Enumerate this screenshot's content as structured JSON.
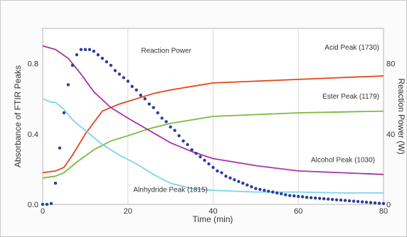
{
  "chart_data": {
    "type": "line",
    "xlabel": "Time (min)",
    "ylabel_left": "Absorbance of FTIR Peaks",
    "ylabel_right": "Reaction Power (W)",
    "xlim": [
      0,
      80
    ],
    "ylim_left": [
      0,
      1.0
    ],
    "ylim_right": [
      0,
      100
    ],
    "x_ticks": [
      0,
      20,
      40,
      60,
      80
    ],
    "y_ticks_left": [
      0.0,
      0.4,
      0.8
    ],
    "y_ticks_right": [
      0,
      40,
      80
    ],
    "grid": "vertical",
    "series": [
      {
        "name": "Acid Peak (1730)",
        "axis": "left",
        "color": "#e8421b",
        "style": "line",
        "x": [
          0,
          3,
          5,
          7,
          10,
          14,
          18,
          22,
          26,
          30,
          35,
          40,
          50,
          60,
          70,
          80
        ],
        "y": [
          0.18,
          0.19,
          0.21,
          0.28,
          0.4,
          0.53,
          0.57,
          0.6,
          0.63,
          0.65,
          0.67,
          0.69,
          0.7,
          0.71,
          0.72,
          0.73
        ]
      },
      {
        "name": "Ester Peak (1179)",
        "axis": "left",
        "color": "#77bb44",
        "style": "line",
        "x": [
          0,
          3,
          5,
          8,
          12,
          16,
          20,
          25,
          30,
          35,
          40,
          50,
          60,
          70,
          80
        ],
        "y": [
          0.15,
          0.16,
          0.18,
          0.24,
          0.31,
          0.36,
          0.39,
          0.43,
          0.46,
          0.48,
          0.5,
          0.51,
          0.52,
          0.525,
          0.53
        ]
      },
      {
        "name": "Alcohol Peak (1030)",
        "axis": "left",
        "color": "#a833a8",
        "style": "line",
        "x": [
          0,
          3,
          6,
          9,
          12,
          16,
          20,
          25,
          30,
          35,
          40,
          50,
          60,
          70,
          80
        ],
        "y": [
          0.9,
          0.88,
          0.83,
          0.74,
          0.64,
          0.55,
          0.49,
          0.42,
          0.35,
          0.3,
          0.26,
          0.22,
          0.19,
          0.18,
          0.17
        ]
      },
      {
        "name": "Alnhydride Peak (1815)",
        "axis": "left",
        "color": "#7fd3ec",
        "style": "line",
        "x": [
          0,
          2,
          3,
          5,
          7,
          10,
          14,
          18,
          22,
          26,
          30,
          35,
          40,
          50,
          60,
          70,
          80
        ],
        "y": [
          0.6,
          0.58,
          0.58,
          0.54,
          0.48,
          0.42,
          0.34,
          0.28,
          0.23,
          0.17,
          0.12,
          0.09,
          0.08,
          0.07,
          0.07,
          0.065,
          0.065
        ]
      },
      {
        "name": "Reaction Power",
        "axis": "right",
        "color": "#2c3d9e",
        "style": "dots",
        "x": [
          0,
          1,
          2,
          3,
          4,
          5,
          6,
          7,
          8,
          9,
          10,
          11,
          12,
          13,
          14,
          15,
          16,
          17,
          18,
          19,
          20,
          21,
          22,
          23,
          24,
          25,
          26,
          27,
          28,
          29,
          30,
          31,
          32,
          33,
          34,
          35,
          36,
          37,
          38,
          39,
          40,
          41,
          42,
          43,
          44,
          45,
          46,
          47,
          48,
          49,
          50,
          51,
          52,
          53,
          54,
          55,
          56,
          57,
          58,
          59,
          60,
          61,
          62,
          63,
          64,
          65,
          66,
          67,
          68,
          69,
          70,
          71,
          72,
          73,
          74,
          75,
          76,
          77,
          78,
          79,
          80
        ],
        "y": [
          0,
          0,
          0.5,
          12,
          32,
          52,
          68,
          79,
          85,
          88,
          88,
          88,
          87,
          85,
          83,
          81,
          79,
          76,
          74,
          72,
          70,
          67,
          65,
          62,
          60,
          57,
          55,
          52,
          49,
          47,
          44,
          42,
          39,
          36,
          34,
          31,
          29,
          27,
          25,
          23,
          21,
          19,
          18,
          16,
          15,
          14,
          13,
          12,
          11,
          10,
          9,
          8.5,
          8,
          7.5,
          7,
          6.5,
          6,
          5.5,
          5,
          4.8,
          4.5,
          4.3,
          4,
          3.8,
          3.6,
          3.4,
          3.2,
          3,
          2.8,
          2.6,
          2.4,
          2.2,
          2,
          1.8,
          1.6,
          1.4,
          1.2,
          1,
          0.8,
          0.6,
          0.5
        ]
      }
    ],
    "annotations": [
      {
        "text": "Reaction Power",
        "x": 29,
        "y": 0.86,
        "axis": "left",
        "anchor": "middle"
      },
      {
        "text": "Acid Peak (1730)",
        "x": 79,
        "y": 0.88,
        "axis": "left",
        "anchor": "end"
      },
      {
        "text": "Ester Peak (1179)",
        "x": 79,
        "y": 0.6,
        "axis": "left",
        "anchor": "end"
      },
      {
        "text": "Alcohol Peak (1030)",
        "x": 78,
        "y": 0.24,
        "axis": "left",
        "anchor": "end"
      },
      {
        "text": "Alnhydride Peak (1815)",
        "x": 30,
        "y": 0.07,
        "axis": "left",
        "anchor": "middle"
      }
    ]
  }
}
